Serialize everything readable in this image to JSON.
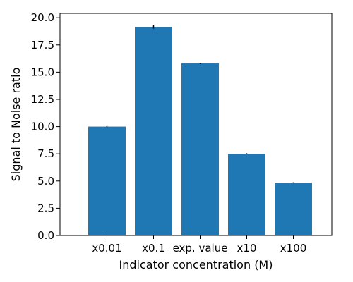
{
  "chart_data": {
    "type": "bar",
    "title": "",
    "xlabel": "Indicator concentration (M)",
    "ylabel": "Signal to Noise ratio",
    "categories": [
      "x0.01",
      "x0.1",
      "exp. value",
      "x10",
      "x100"
    ],
    "values": [
      10.0,
      19.15,
      15.8,
      7.5,
      4.85
    ],
    "errors": [
      0.05,
      0.15,
      0.05,
      0.05,
      0.03
    ],
    "ylim": [
      0,
      20.4
    ],
    "yticks": [
      "0.0",
      "2.5",
      "5.0",
      "7.5",
      "10.0",
      "12.5",
      "15.0",
      "17.5",
      "20.0"
    ],
    "grid": false,
    "legend": "none",
    "colors": {
      "bar": "#1f77b4",
      "error": "#000000",
      "axis": "#000000"
    }
  }
}
